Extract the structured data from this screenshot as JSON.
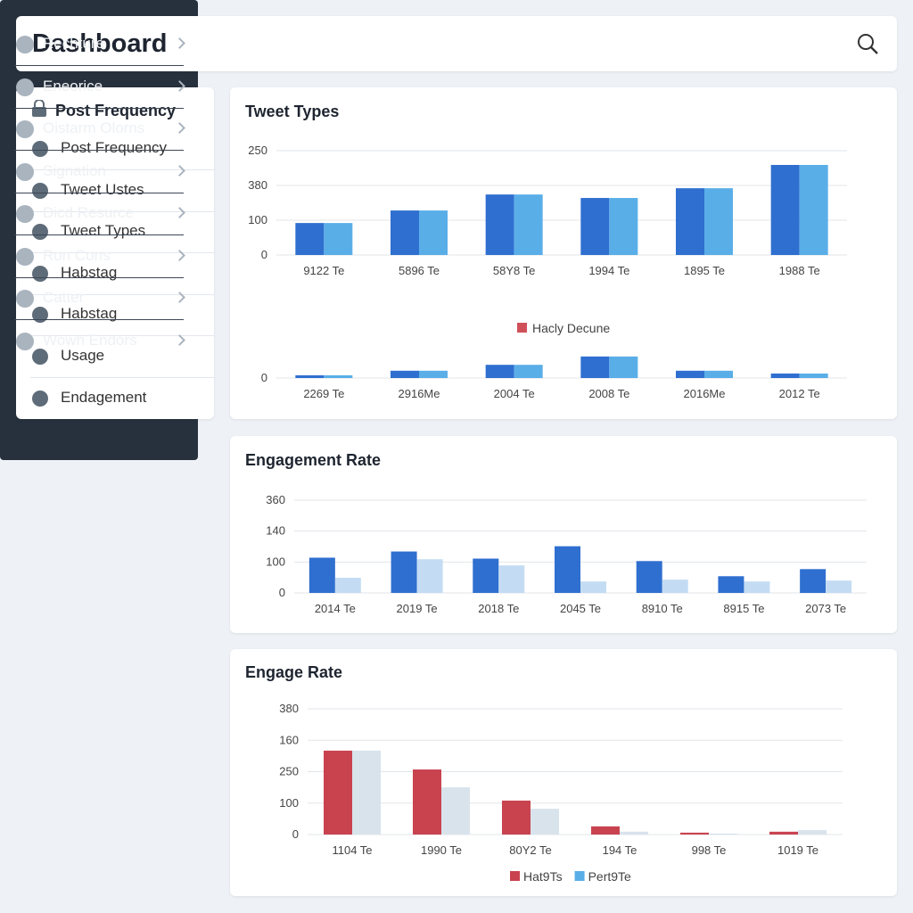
{
  "header": {
    "title": "Dashboard"
  },
  "sidebar": {
    "title": "Post Frequency",
    "items": [
      "Post Frequency",
      "Tweet Ustes",
      "Tweet Types",
      "Habstag",
      "Habstag",
      "Usage",
      "Endagement"
    ]
  },
  "nav": {
    "items": [
      "Rechture",
      "Eneorice",
      "Oistarm Olorns",
      "Signation",
      "Dicd Resurce",
      "Ron Cons",
      "Catter",
      "Wowh Endors"
    ]
  },
  "chart_data": [
    {
      "type": "bar",
      "title": "Tweet Types",
      "categories": [
        "9122 Te",
        "5896 Te",
        "58Y8 Te",
        "1994 Te",
        "1895 Te",
        "1988 Te"
      ],
      "series": [
        {
          "color": "#2f6fd0",
          "values": [
            92,
            128,
            174,
            164,
            192,
            259
          ]
        },
        {
          "color": "#5aaee8",
          "values": [
            92,
            128,
            174,
            164,
            192,
            259
          ]
        }
      ],
      "ylim": [
        0,
        300
      ],
      "yticks": [
        0,
        100,
        {
          "value": 200,
          "label": "380"
        },
        {
          "value": 300,
          "label": "250"
        }
      ],
      "grid": true
    },
    {
      "type": "bar",
      "legend": {
        "label": "Hacly Decune",
        "color": "#d0505a"
      },
      "categories": [
        "2269 Te",
        "2916Me",
        "2004 Te",
        "2008 Te",
        "2016Me",
        "2012 Te"
      ],
      "series": [
        {
          "color": "#2f6fd0",
          "values": [
            8,
            21,
            38,
            62,
            21,
            13
          ]
        },
        {
          "color": "#5aaee8",
          "values": [
            8,
            21,
            38,
            62,
            21,
            13
          ]
        }
      ],
      "ylim": [
        0,
        100
      ],
      "yticks": [
        0
      ],
      "grid": true
    },
    {
      "type": "bar",
      "title": "Engagement Rate",
      "categories": [
        "2014 Te",
        "2019 Te",
        "2018 Te",
        "2045 Te",
        "8910 Te",
        "8915 Te",
        "2073 Te"
      ],
      "series": [
        {
          "color": "#2f6fd0",
          "values": [
            114,
            134,
            111,
            151,
            103,
            54,
            77
          ]
        },
        {
          "color": "#c4dcf3",
          "values": [
            49,
            109,
            89,
            37,
            43,
            37,
            40
          ]
        }
      ],
      "ylim": [
        0,
        300
      ],
      "yticks": [
        0,
        100,
        {
          "value": 200,
          "label": "140"
        },
        {
          "value": 300,
          "label": "360"
        }
      ],
      "grid": true
    },
    {
      "type": "bar",
      "title": "Engage Rate",
      "categories": [
        "1104 Te",
        "1990 Te",
        "80Y2 Te",
        "194 Te",
        "998 Te",
        "1019 Te"
      ],
      "series": [
        {
          "name": "Hat9Ts",
          "color": "#c9434f",
          "values": [
            267,
            207,
            108,
            26,
            6,
            9
          ]
        },
        {
          "name": "Pert9Te",
          "color": "#5aaee8",
          "barcolor": "#d8e3ec",
          "values": [
            267,
            150,
            82,
            9,
            3,
            14
          ]
        }
      ],
      "ylim": [
        0,
        400
      ],
      "yticks": [
        0,
        100,
        {
          "value": 200,
          "label": "250"
        },
        {
          "value": 300,
          "label": "160"
        },
        {
          "value": 400,
          "label": "380"
        }
      ],
      "grid": true
    }
  ]
}
